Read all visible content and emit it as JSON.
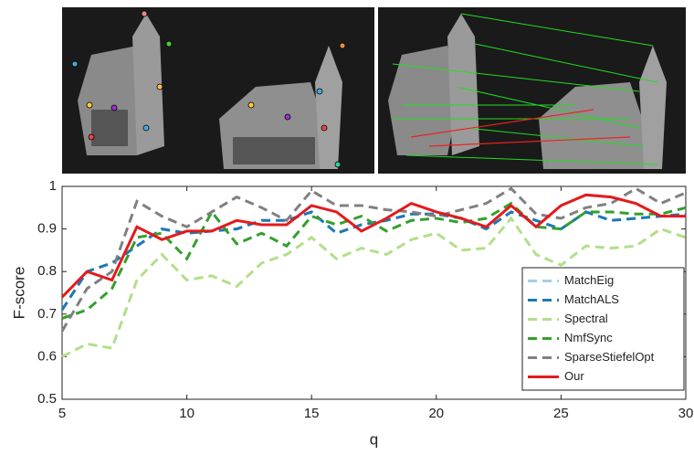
{
  "chart_data": {
    "type": "line",
    "x": [
      5,
      6,
      7,
      8,
      9,
      10,
      11,
      12,
      13,
      14,
      15,
      16,
      17,
      18,
      19,
      20,
      21,
      22,
      23,
      24,
      25,
      26,
      27,
      28,
      29,
      30
    ],
    "xlabel": "q",
    "ylabel": "F-score",
    "xlim": [
      5,
      30
    ],
    "xticks": [
      5,
      10,
      15,
      20,
      25,
      30
    ],
    "ylim": [
      0.5,
      1
    ],
    "yticks": [
      0.5,
      0.6,
      0.7,
      0.8,
      0.9,
      1
    ],
    "legend": "lower right",
    "series": [
      {
        "name": "MatchEig",
        "color": "#a6cee3",
        "style": "dashed",
        "values": [
          0.71,
          0.8,
          0.82,
          0.86,
          0.9,
          0.89,
          0.895,
          0.9,
          0.92,
          0.92,
          0.94,
          0.89,
          0.91,
          0.92,
          0.935,
          0.935,
          0.925,
          0.9,
          0.94,
          0.92,
          0.9,
          0.94,
          0.92,
          0.925,
          0.93,
          0.935
        ]
      },
      {
        "name": "MatchALS",
        "color": "#1f78b4",
        "style": "dashed",
        "values": [
          0.71,
          0.8,
          0.82,
          0.86,
          0.9,
          0.89,
          0.895,
          0.9,
          0.92,
          0.92,
          0.94,
          0.89,
          0.91,
          0.92,
          0.935,
          0.935,
          0.925,
          0.9,
          0.94,
          0.92,
          0.9,
          0.94,
          0.92,
          0.925,
          0.93,
          0.935
        ]
      },
      {
        "name": "Spectral",
        "color": "#b2df8a",
        "style": "dashed",
        "values": [
          0.6,
          0.63,
          0.62,
          0.78,
          0.84,
          0.78,
          0.79,
          0.765,
          0.82,
          0.84,
          0.88,
          0.83,
          0.855,
          0.84,
          0.875,
          0.89,
          0.85,
          0.855,
          0.925,
          0.84,
          0.815,
          0.86,
          0.855,
          0.86,
          0.9,
          0.88
        ]
      },
      {
        "name": "NmfSync",
        "color": "#33a02c",
        "style": "dashed",
        "values": [
          0.69,
          0.71,
          0.76,
          0.88,
          0.89,
          0.83,
          0.94,
          0.865,
          0.89,
          0.86,
          0.93,
          0.91,
          0.93,
          0.895,
          0.92,
          0.925,
          0.915,
          0.925,
          0.96,
          0.905,
          0.9,
          0.94,
          0.94,
          0.935,
          0.935,
          0.95
        ]
      },
      {
        "name": "SparseStiefelOpt",
        "color": "#808080",
        "style": "dashed",
        "values": [
          0.66,
          0.76,
          0.8,
          0.965,
          0.93,
          0.905,
          0.94,
          0.975,
          0.95,
          0.92,
          0.99,
          0.955,
          0.955,
          0.945,
          0.94,
          0.93,
          0.945,
          0.96,
          0.995,
          0.935,
          0.925,
          0.95,
          0.96,
          0.995,
          0.96,
          0.985
        ]
      },
      {
        "name": "Our",
        "color": "#e31a1c",
        "style": "solid",
        "values": [
          0.74,
          0.8,
          0.78,
          0.905,
          0.875,
          0.895,
          0.895,
          0.92,
          0.91,
          0.91,
          0.955,
          0.94,
          0.895,
          0.925,
          0.96,
          0.94,
          0.925,
          0.905,
          0.955,
          0.905,
          0.955,
          0.98,
          0.975,
          0.96,
          0.93,
          0.93
        ]
      }
    ]
  }
}
